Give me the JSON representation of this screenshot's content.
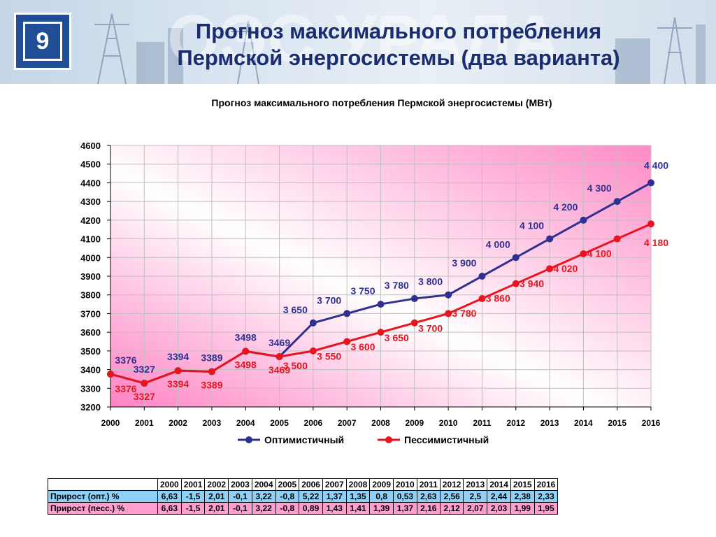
{
  "slide": {
    "number": "9",
    "title_line1": "Прогноз максимального потребления",
    "title_line2": "Пермской энергосистемы (два варианта)",
    "banner_text": "ОЭС УРАЛА"
  },
  "chart_data": {
    "type": "line",
    "title": "Прогноз максимального потребления Пермской энергосистемы (МВт)",
    "xlabel": "",
    "ylabel": "",
    "categories": [
      "2000",
      "2001",
      "2002",
      "2003",
      "2004",
      "2005",
      "2006",
      "2007",
      "2008",
      "2009",
      "2010",
      "2011",
      "2012",
      "2013",
      "2014",
      "2015",
      "2016"
    ],
    "ylim": [
      3200,
      4600
    ],
    "yticks": [
      "4600",
      "4500",
      "4400",
      "4300",
      "4200",
      "4100",
      "4000",
      "3900",
      "3800",
      "3700",
      "3600",
      "3500",
      "3400",
      "3300",
      "3200"
    ],
    "grid": true,
    "legend_position": "bottom",
    "series": [
      {
        "name": "Оптимистичный",
        "color": "#2e3192",
        "values": [
          3376,
          3327,
          3394,
          3389,
          3498,
          3469,
          3650,
          3700,
          3750,
          3780,
          3800,
          3900,
          4000,
          4100,
          4200,
          4300,
          4400
        ],
        "labels": [
          "3376",
          "3327",
          "3394",
          "3389",
          "3498",
          "3469",
          "3 650",
          "3 700",
          "3 750",
          "3 780",
          "3 800",
          "3 900",
          "4 000",
          "4 100",
          "4 200",
          "4 300",
          "4 400"
        ]
      },
      {
        "name": "Пессимистичный",
        "color": "#e8141e",
        "values": [
          3376,
          3327,
          3394,
          3389,
          3498,
          3469,
          3500,
          3550,
          3600,
          3650,
          3700,
          3780,
          3860,
          3940,
          4020,
          4100,
          4180
        ],
        "labels": [
          "3376",
          "3327",
          "3394",
          "3389",
          "3498",
          "3469",
          "3 500",
          "3 550",
          "3 600",
          "3 650",
          "3 700",
          "3 780",
          "3 860",
          "3 940",
          "4 020",
          "4 100",
          "4 180"
        ]
      }
    ]
  },
  "table": {
    "years": [
      "2000",
      "2001",
      "2002",
      "2003",
      "2004",
      "2005",
      "2006",
      "2007",
      "2008",
      "2009",
      "2010",
      "2011",
      "2012",
      "2013",
      "2014",
      "2015",
      "2016"
    ],
    "rows": [
      {
        "label": "Прирост (опт.) %",
        "values": [
          "6,63",
          "-1,5",
          "2,01",
          "-0,1",
          "3,22",
          "-0,8",
          "5,22",
          "1,37",
          "1,35",
          "0,8",
          "0,53",
          "2,63",
          "2,56",
          "2,5",
          "2,44",
          "2,38",
          "2,33"
        ]
      },
      {
        "label": "Прирост (песс.) %",
        "values": [
          "6,63",
          "-1,5",
          "2,01",
          "-0,1",
          "3,22",
          "-0,8",
          "0,89",
          "1,43",
          "1,41",
          "1,39",
          "1,37",
          "2,16",
          "2,12",
          "2,07",
          "2,03",
          "1,99",
          "1,95"
        ]
      }
    ]
  }
}
